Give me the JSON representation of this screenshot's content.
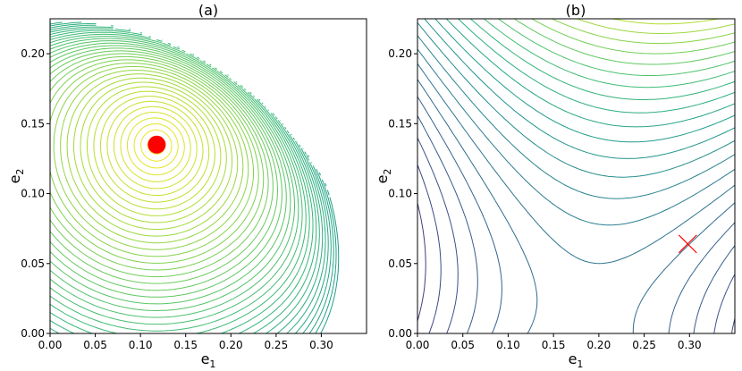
{
  "chart_data": [
    {
      "type": "contour",
      "title": "(a)",
      "xlabel": "e",
      "xlabel_sub": "1",
      "ylabel": "e",
      "ylabel_sub": "2",
      "xlim": [
        0.0,
        0.35
      ],
      "ylim": [
        0.0,
        0.225
      ],
      "xticks": [
        "0.00",
        "0.05",
        "0.10",
        "0.15",
        "0.20",
        "0.25",
        "0.30"
      ],
      "yticks": [
        "0.00",
        "0.05",
        "0.10",
        "0.15",
        "0.20"
      ],
      "colormap": "viridis",
      "level_count": 40,
      "optimum_marker": {
        "shape": "filled-circle",
        "color": "#ff0000",
        "x": 0.118,
        "y": 0.135
      },
      "domain_boundary": {
        "shape": "quarter-ellipse",
        "x_extent": 0.348,
        "y_extent": 0.225
      },
      "grid": false
    },
    {
      "type": "contour",
      "title": "(b)",
      "xlabel": "e",
      "xlabel_sub": "1",
      "ylabel": "e",
      "ylabel_sub": "2",
      "xlim": [
        0.0,
        0.35
      ],
      "ylim": [
        0.0,
        0.225
      ],
      "xticks": [
        "0.00",
        "0.05",
        "0.10",
        "0.15",
        "0.20",
        "0.25",
        "0.30"
      ],
      "yticks": [
        "0.00",
        "0.05",
        "0.10",
        "0.15",
        "0.20"
      ],
      "colormap": "viridis",
      "level_count": 30,
      "saddle_marker": {
        "shape": "x-cross",
        "color": "#ff0000",
        "x": 0.298,
        "y": 0.064
      },
      "grid": false
    }
  ]
}
